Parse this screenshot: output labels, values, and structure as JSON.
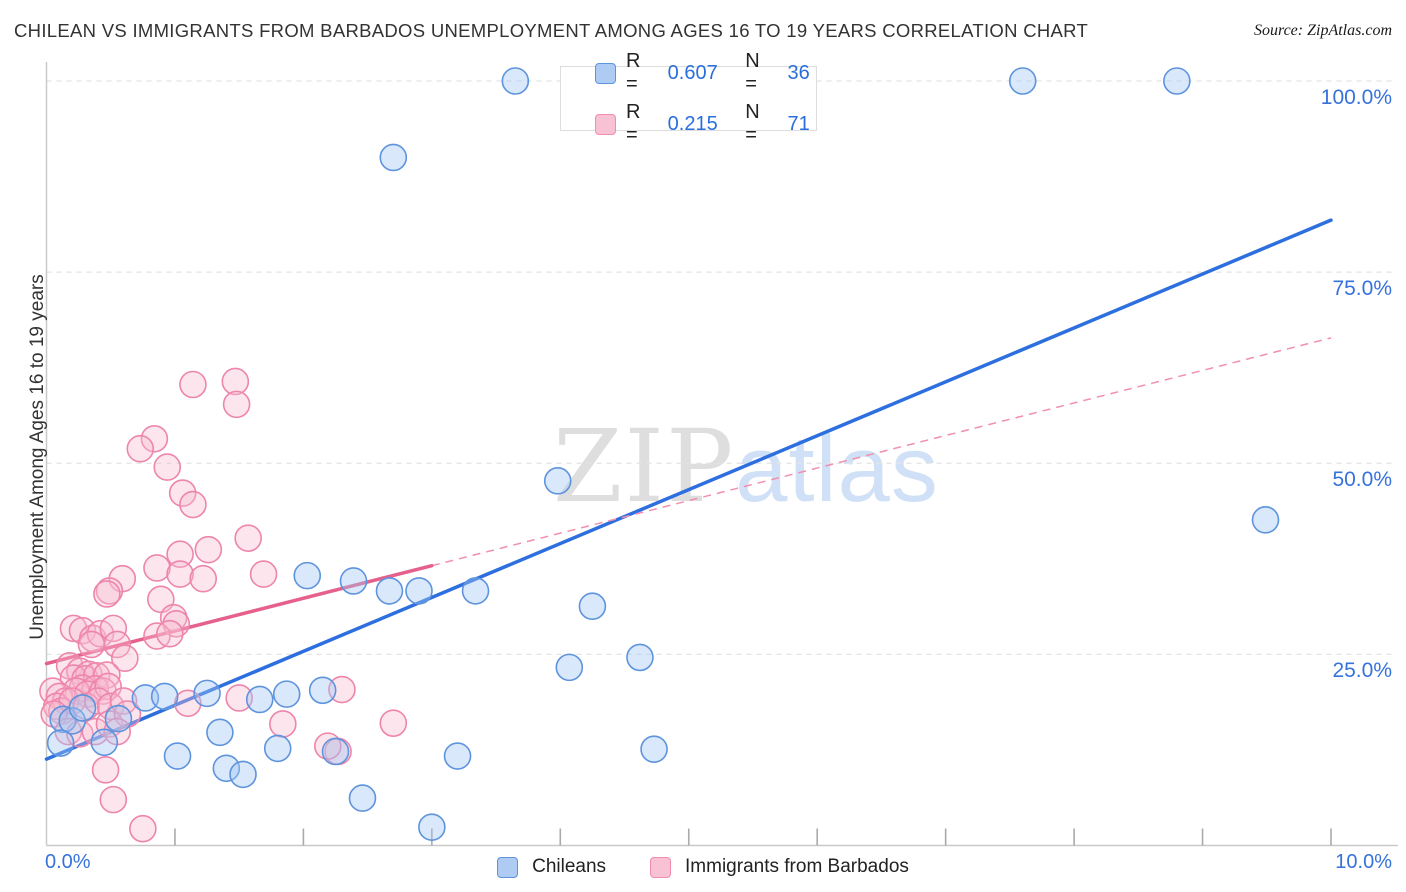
{
  "header": {
    "title": "CHILEAN VS IMMIGRANTS FROM BARBADOS UNEMPLOYMENT AMONG AGES 16 TO 19 YEARS CORRELATION CHART",
    "source": "Source: ZipAtlas.com"
  },
  "watermark": {
    "part1": "ZIP",
    "part2": "atlas"
  },
  "legend_box": {
    "series": [
      {
        "name": "Chileans",
        "r_label": "R =",
        "r_value": "0.607",
        "n_label": "N =",
        "n_value": "36",
        "swatch_fill": "#aecbf3",
        "swatch_border": "#5e94dd"
      },
      {
        "name": "Immigrants from Barbados",
        "r_label": "R =",
        "r_value": "0.215",
        "n_label": "N =",
        "n_value": "71",
        "swatch_fill": "#f9c2d4",
        "swatch_border": "#f08cb0"
      }
    ]
  },
  "bottom_legend": {
    "items": [
      {
        "label": "Chileans",
        "color": "#aecbf3",
        "border": "#5e94dd"
      },
      {
        "label": "Immigrants from Barbados",
        "color": "#f9c2d4",
        "border": "#f08cb0"
      }
    ]
  },
  "axes": {
    "y_title": "Unemployment Among Ages 16 to 19 years",
    "y_tick_labels": [
      "100.0%",
      "75.0%",
      "50.0%",
      "25.0%"
    ],
    "y_tick_values": [
      100,
      75,
      50,
      25
    ],
    "x_min_label": "0.0%",
    "x_max_label": "10.0%"
  },
  "chart_data": {
    "type": "scatter",
    "title": "Chilean vs Immigrants from Barbados Unemployment Among Ages 16 to 19 years",
    "xlabel_unit": "%",
    "ylabel": "Unemployment Among Ages 16 to 19 years",
    "xlim": [
      0,
      10
    ],
    "ylim": [
      0,
      104
    ],
    "grid": "dashed horizontal at 25/50/75/100",
    "legend_position": "top-center and bottom-center",
    "colors": {
      "blue_fill": "rgba(160,198,243,0.40)",
      "blue_stroke": "#5e94dd",
      "pink_fill": "rgba(248,186,208,0.38)",
      "pink_stroke": "#ee85ac",
      "blue_line": "#2d6fdf",
      "pink_line": "#e5618c",
      "pink_dash": "#f090ae",
      "grid": "#e3e3e3",
      "axis": "#c9c9c9",
      "tick": "#aaaaaa",
      "accent_text": "#3672db"
    },
    "series": [
      {
        "name": "Chileans",
        "R": 0.607,
        "N": 36,
        "points": [
          [
            3.65,
            100
          ],
          [
            7.6,
            100
          ],
          [
            8.8,
            100
          ],
          [
            2.7,
            90
          ],
          [
            3.98,
            47.7
          ],
          [
            9.49,
            42.6
          ],
          [
            4.25,
            31.3
          ],
          [
            2.03,
            35.3
          ],
          [
            2.39,
            34.6
          ],
          [
            2.67,
            33.3
          ],
          [
            2.9,
            33.3
          ],
          [
            3.34,
            33.3
          ],
          [
            4.07,
            23.3
          ],
          [
            4.62,
            24.6
          ],
          [
            4.73,
            12.6
          ],
          [
            3.2,
            11.7
          ],
          [
            3.0,
            2.4
          ],
          [
            2.46,
            6.2
          ],
          [
            0.13,
            16.5
          ],
          [
            0.2,
            16.3
          ],
          [
            0.28,
            18.0
          ],
          [
            0.56,
            16.6
          ],
          [
            0.77,
            19.3
          ],
          [
            0.92,
            19.5
          ],
          [
            1.25,
            19.9
          ],
          [
            0.11,
            13.4
          ],
          [
            1.02,
            11.7
          ],
          [
            1.8,
            12.7
          ],
          [
            1.87,
            19.8
          ],
          [
            1.66,
            19.1
          ],
          [
            1.4,
            10.1
          ],
          [
            1.53,
            9.3
          ],
          [
            2.25,
            12.3
          ],
          [
            0.45,
            13.5
          ],
          [
            1.35,
            14.8
          ],
          [
            2.15,
            20.3
          ]
        ],
        "trend": {
          "style": "solid",
          "x1": 0,
          "y1": 11.3,
          "x2": 10,
          "y2": 81.8
        }
      },
      {
        "name": "Immigrants from Barbados",
        "R": 0.215,
        "N": 71,
        "points": [
          [
            1.14,
            60.3
          ],
          [
            1.47,
            60.7
          ],
          [
            1.48,
            57.7
          ],
          [
            0.84,
            53.2
          ],
          [
            0.73,
            51.9
          ],
          [
            0.94,
            49.5
          ],
          [
            1.06,
            46.1
          ],
          [
            1.14,
            44.6
          ],
          [
            1.57,
            40.2
          ],
          [
            1.04,
            38.1
          ],
          [
            1.26,
            38.7
          ],
          [
            0.86,
            36.3
          ],
          [
            0.59,
            34.9
          ],
          [
            1.04,
            35.5
          ],
          [
            1.22,
            34.9
          ],
          [
            1.69,
            35.5
          ],
          [
            0.49,
            33.3
          ],
          [
            0.47,
            32.9
          ],
          [
            0.89,
            32.2
          ],
          [
            0.99,
            29.8
          ],
          [
            1.01,
            29.0
          ],
          [
            0.21,
            28.4
          ],
          [
            0.28,
            28.1
          ],
          [
            0.36,
            27.1
          ],
          [
            0.42,
            27.7
          ],
          [
            0.52,
            28.4
          ],
          [
            0.35,
            26.3
          ],
          [
            0.86,
            27.4
          ],
          [
            0.96,
            27.7
          ],
          [
            0.55,
            26.3
          ],
          [
            0.61,
            24.5
          ],
          [
            0.18,
            23.5
          ],
          [
            0.26,
            22.8
          ],
          [
            0.33,
            22.4
          ],
          [
            0.21,
            21.9
          ],
          [
            0.3,
            21.8
          ],
          [
            0.39,
            22.2
          ],
          [
            0.47,
            22.3
          ],
          [
            0.28,
            20.6
          ],
          [
            0.38,
            20.5
          ],
          [
            0.23,
            20.2
          ],
          [
            0.32,
            19.8
          ],
          [
            0.44,
            20.2
          ],
          [
            0.48,
            20.8
          ],
          [
            0.05,
            20.2
          ],
          [
            0.1,
            19.5
          ],
          [
            0.15,
            18.9
          ],
          [
            0.08,
            18.2
          ],
          [
            0.12,
            17.6
          ],
          [
            0.2,
            18.9
          ],
          [
            0.31,
            18.2
          ],
          [
            0.4,
            18.9
          ],
          [
            0.5,
            18.2
          ],
          [
            0.6,
            18.9
          ],
          [
            0.06,
            17.2
          ],
          [
            0.17,
            14.9
          ],
          [
            0.26,
            14.6
          ],
          [
            0.38,
            14.9
          ],
          [
            0.49,
            15.9
          ],
          [
            1.1,
            18.6
          ],
          [
            0.63,
            17.2
          ],
          [
            0.55,
            14.9
          ],
          [
            1.5,
            19.3
          ],
          [
            2.3,
            20.4
          ],
          [
            2.7,
            16.0
          ],
          [
            2.27,
            12.3
          ],
          [
            1.84,
            15.9
          ],
          [
            2.19,
            13.0
          ],
          [
            0.46,
            9.9
          ],
          [
            0.52,
            6.0
          ],
          [
            0.75,
            2.2
          ]
        ],
        "trend_solid": {
          "style": "solid",
          "x1": 0,
          "y1": 23.8,
          "x2": 3.0,
          "y2": 36.6
        },
        "trend_dashed": {
          "style": "dashed",
          "x1": 3.0,
          "y1": 36.6,
          "x2": 10,
          "y2": 66.4
        }
      }
    ]
  }
}
